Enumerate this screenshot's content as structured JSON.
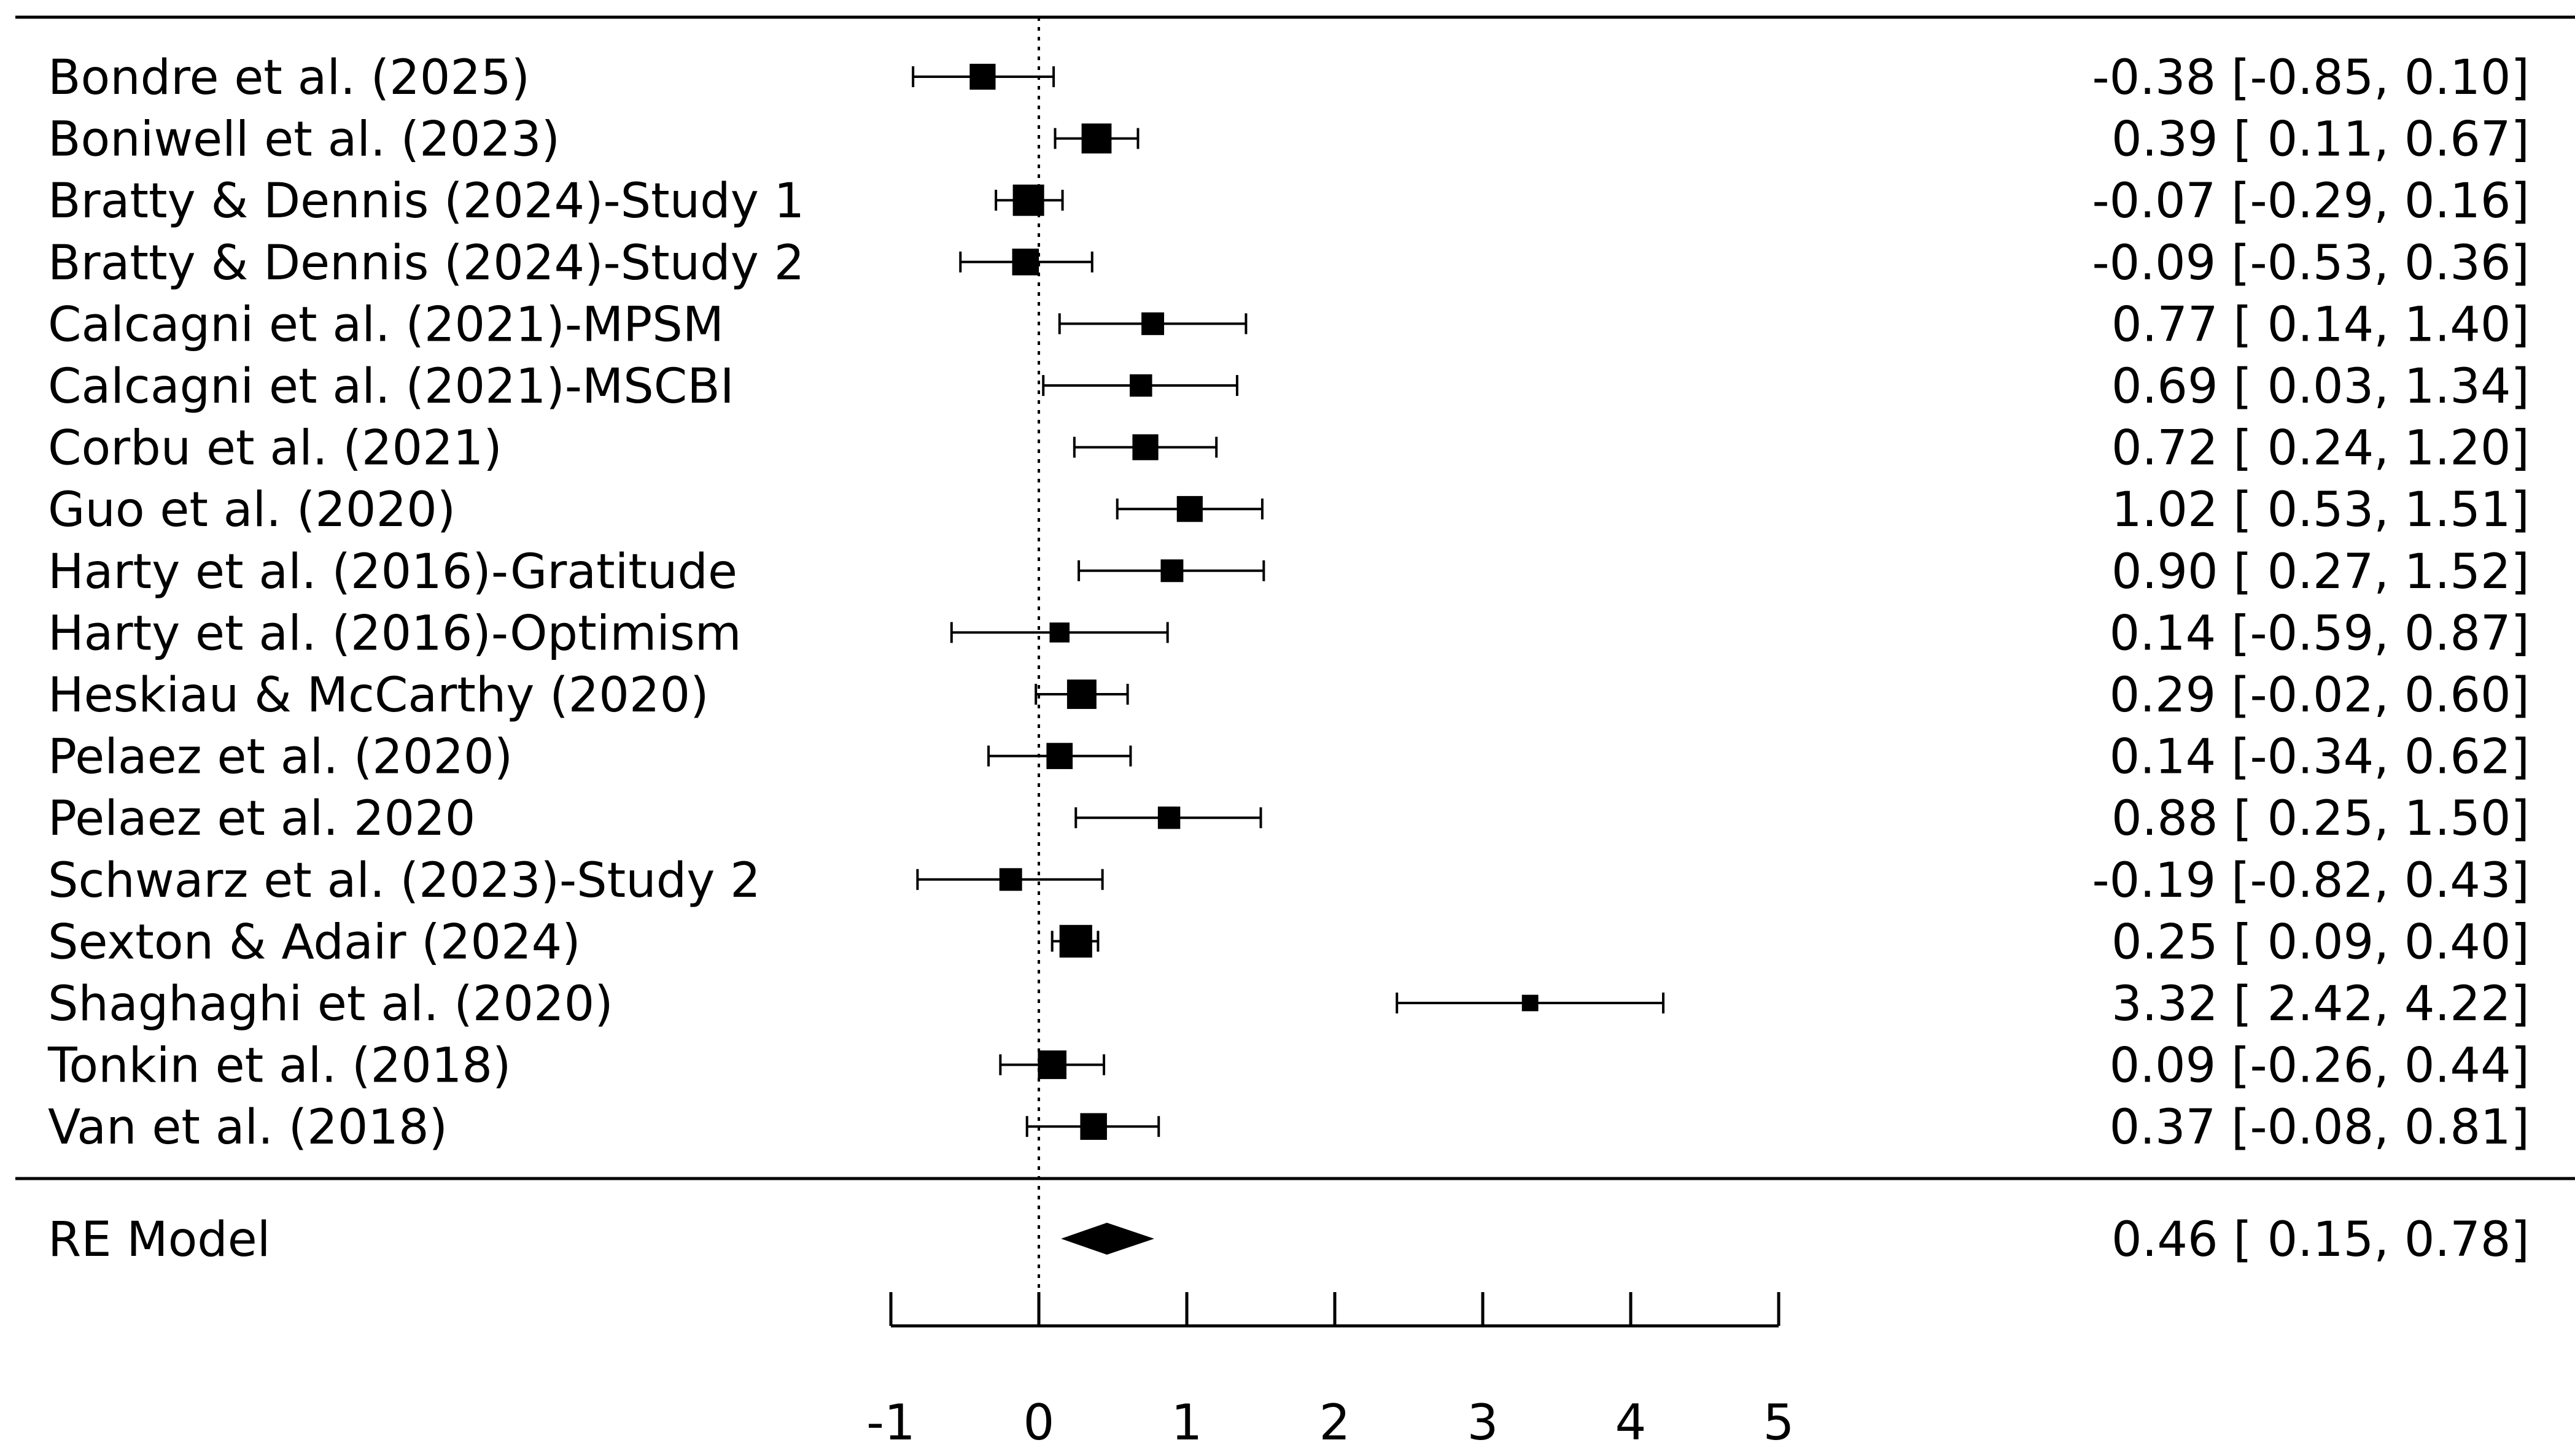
{
  "chart_data": {
    "type": "forest",
    "title": "",
    "xlabel": "",
    "ylabel": "",
    "xlim": [
      -1,
      5
    ],
    "xticks": [
      "-1",
      "0",
      "1",
      "2",
      "3",
      "4",
      "5"
    ],
    "reference_line": 0,
    "studies": [
      {
        "label": "Bondre et al. (2025)",
        "estimate": -0.38,
        "lower": -0.85,
        "upper": 0.1,
        "weight": 0.55,
        "ci_text": "-0.38 [-0.85, 0.10]"
      },
      {
        "label": "Boniwell et al. (2023)",
        "estimate": 0.39,
        "lower": 0.11,
        "upper": 0.67,
        "weight": 0.7,
        "ci_text": "0.39 [ 0.11, 0.67]"
      },
      {
        "label": "Bratty & Dennis (2024)-Study 1",
        "estimate": -0.07,
        "lower": -0.29,
        "upper": 0.16,
        "weight": 0.75,
        "ci_text": "-0.07 [-0.29, 0.16]"
      },
      {
        "label": "Bratty & Dennis (2024)-Study 2",
        "estimate": -0.09,
        "lower": -0.53,
        "upper": 0.36,
        "weight": 0.58,
        "ci_text": "-0.09 [-0.53, 0.36]"
      },
      {
        "label": "Calcagni et al. (2021)-MPSM",
        "estimate": 0.77,
        "lower": 0.14,
        "upper": 1.4,
        "weight": 0.43,
        "ci_text": "0.77 [ 0.14, 1.40]"
      },
      {
        "label": "Calcagni et al. (2021)-MSCBI",
        "estimate": 0.69,
        "lower": 0.03,
        "upper": 1.34,
        "weight": 0.42,
        "ci_text": "0.69 [ 0.03, 1.34]"
      },
      {
        "label": "Corbu et al. (2021)",
        "estimate": 0.72,
        "lower": 0.24,
        "upper": 1.2,
        "weight": 0.55,
        "ci_text": "0.72 [ 0.24, 1.20]"
      },
      {
        "label": "Guo et al. (2020)",
        "estimate": 1.02,
        "lower": 0.53,
        "upper": 1.51,
        "weight": 0.55,
        "ci_text": "1.02 [ 0.53, 1.51]"
      },
      {
        "label": "Harty et al. (2016)-Gratitude",
        "estimate": 0.9,
        "lower": 0.27,
        "upper": 1.52,
        "weight": 0.43,
        "ci_text": "0.90 [ 0.27, 1.52]"
      },
      {
        "label": "Harty et al.  (2016)-Optimism",
        "estimate": 0.14,
        "lower": -0.59,
        "upper": 0.87,
        "weight": 0.33,
        "ci_text": "0.14 [-0.59, 0.87]"
      },
      {
        "label": "Heskiau & McCarthy (2020)",
        "estimate": 0.29,
        "lower": -0.02,
        "upper": 0.6,
        "weight": 0.68,
        "ci_text": "0.29 [-0.02, 0.60]"
      },
      {
        "label": "Pelaez et al. (2020)",
        "estimate": 0.14,
        "lower": -0.34,
        "upper": 0.62,
        "weight": 0.56,
        "ci_text": "0.14 [-0.34, 0.62]"
      },
      {
        "label": "Pelaez et al. 2020",
        "estimate": 0.88,
        "lower": 0.25,
        "upper": 1.5,
        "weight": 0.42,
        "ci_text": "0.88 [ 0.25, 1.50]"
      },
      {
        "label": "Schwarz et al. (2023)-Study 2",
        "estimate": -0.19,
        "lower": -0.82,
        "upper": 0.43,
        "weight": 0.43,
        "ci_text": "-0.19 [-0.82, 0.43]"
      },
      {
        "label": "Sexton & Adair (2024)",
        "estimate": 0.25,
        "lower": 0.09,
        "upper": 0.4,
        "weight": 0.8,
        "ci_text": "0.25 [ 0.09, 0.40]"
      },
      {
        "label": "Shaghaghi et al. (2020)",
        "estimate": 3.32,
        "lower": 2.42,
        "upper": 4.22,
        "weight": 0.2,
        "ci_text": "3.32 [ 2.42, 4.22]"
      },
      {
        "label": "Tonkin et al. (2018)",
        "estimate": 0.09,
        "lower": -0.26,
        "upper": 0.44,
        "weight": 0.65,
        "ci_text": "0.09 [-0.26, 0.44]"
      },
      {
        "label": "Van et al. (2018)",
        "estimate": 0.37,
        "lower": -0.08,
        "upper": 0.81,
        "weight": 0.58,
        "ci_text": "0.37 [-0.08, 0.81]"
      }
    ],
    "summary": {
      "label": "RE Model",
      "estimate": 0.46,
      "lower": 0.15,
      "upper": 0.78,
      "ci_text": "0.46 [ 0.15, 0.78]"
    }
  }
}
